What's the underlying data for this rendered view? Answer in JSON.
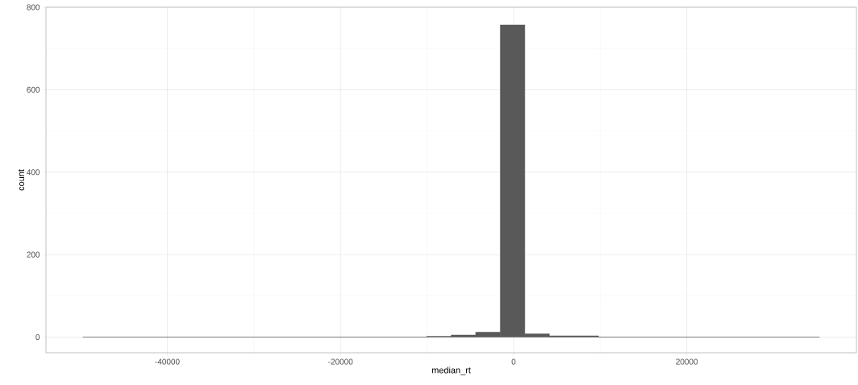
{
  "chart_data": {
    "type": "histogram",
    "xlabel": "median_rt",
    "ylabel": "count",
    "bins": [
      -49770,
      -46933,
      -44096,
      -41259,
      -38422,
      -35585,
      -32748,
      -29911,
      -27074,
      -24237,
      -21400,
      -18563,
      -15726,
      -12889,
      -10052,
      -7215,
      -4378,
      -1541,
      1296,
      4133,
      6970,
      9807,
      12644,
      15481,
      18318,
      21155,
      23992,
      26829,
      29666,
      32503,
      35340
    ],
    "values": [
      0,
      0,
      0,
      0,
      0,
      0,
      0,
      0,
      0,
      0,
      0,
      0,
      0,
      0,
      2,
      5,
      12,
      757,
      8,
      3,
      3,
      0,
      0,
      0,
      0,
      0,
      0,
      0,
      0,
      0
    ],
    "color": "#595959",
    "xlim": [
      -54020,
      39600
    ],
    "ylim": [
      -38,
      800
    ],
    "xticks": [
      -40000,
      -20000,
      0,
      20000
    ],
    "yticks": [
      0,
      200,
      400,
      600,
      800
    ],
    "grid": true
  }
}
